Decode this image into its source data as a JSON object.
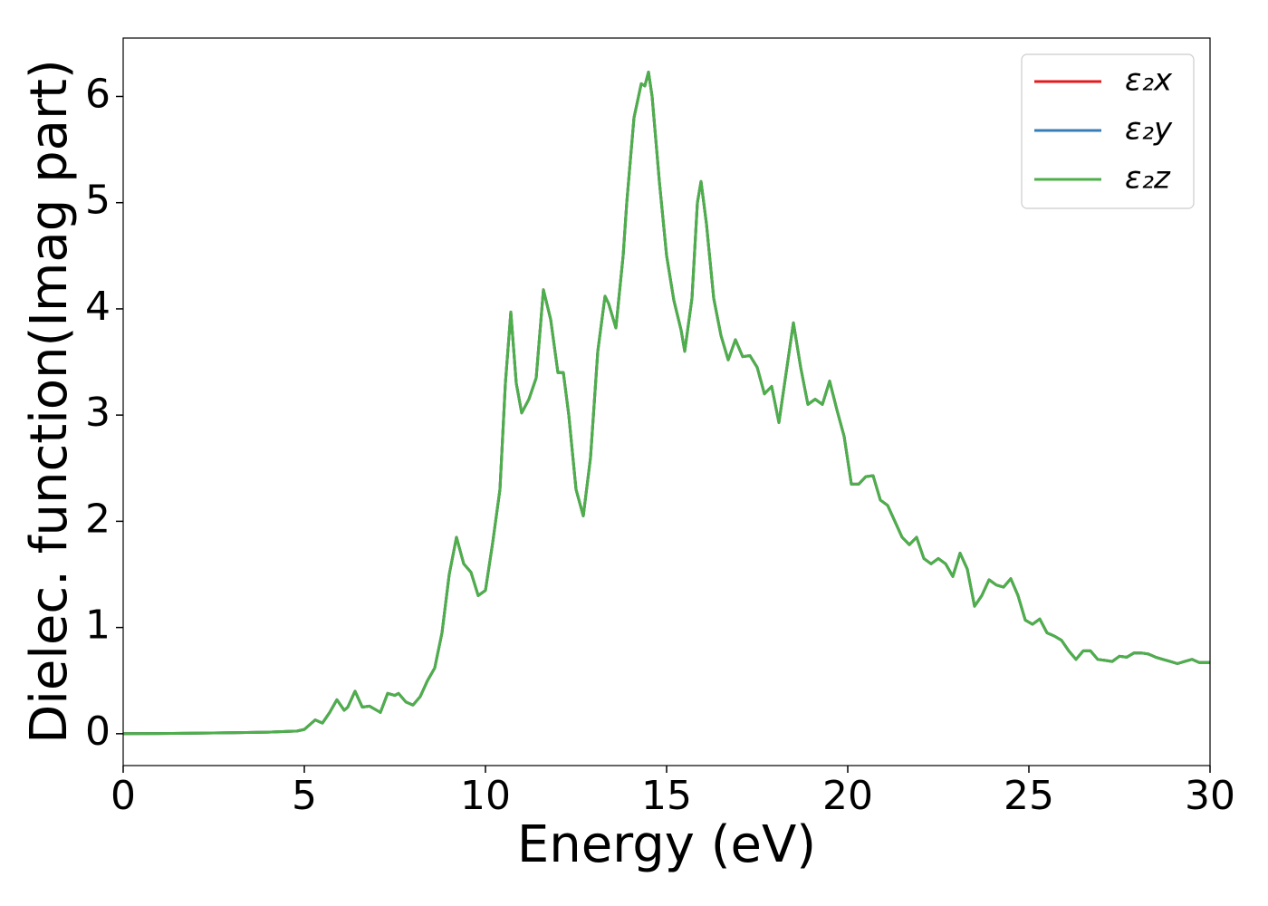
{
  "chart_data": {
    "type": "line",
    "x_label": "Energy (eV)",
    "y_label": "Dielec. function(Imag part)",
    "x": [
      0,
      1,
      2,
      3,
      4,
      4.8,
      5.0,
      5.2,
      5.3,
      5.5,
      5.7,
      5.9,
      6.1,
      6.2,
      6.4,
      6.6,
      6.8,
      7.0,
      7.1,
      7.3,
      7.5,
      7.6,
      7.8,
      8.0,
      8.2,
      8.4,
      8.6,
      8.8,
      9.0,
      9.2,
      9.4,
      9.6,
      9.8,
      10.0,
      10.2,
      10.4,
      10.55,
      10.7,
      10.85,
      11.0,
      11.2,
      11.4,
      11.6,
      11.8,
      12.0,
      12.15,
      12.3,
      12.5,
      12.7,
      12.9,
      13.1,
      13.3,
      13.4,
      13.6,
      13.8,
      13.9,
      14.1,
      14.3,
      14.4,
      14.5,
      14.6,
      14.8,
      15.0,
      15.2,
      15.4,
      15.5,
      15.7,
      15.85,
      15.95,
      16.1,
      16.3,
      16.5,
      16.7,
      16.9,
      17.1,
      17.3,
      17.5,
      17.7,
      17.9,
      18.1,
      18.3,
      18.5,
      18.7,
      18.9,
      19.1,
      19.3,
      19.5,
      19.7,
      19.9,
      20.1,
      20.3,
      20.5,
      20.7,
      20.9,
      21.1,
      21.3,
      21.5,
      21.7,
      21.9,
      22.1,
      22.3,
      22.5,
      22.7,
      22.9,
      23.1,
      23.3,
      23.5,
      23.7,
      23.9,
      24.1,
      24.3,
      24.5,
      24.7,
      24.9,
      25.1,
      25.3,
      25.5,
      25.7,
      25.9,
      26.1,
      26.3,
      26.5,
      26.7,
      26.9,
      27.1,
      27.3,
      27.5,
      27.7,
      27.9,
      28.1,
      28.3,
      28.5,
      28.7,
      28.9,
      29.1,
      29.3,
      29.5,
      29.7,
      30.0
    ],
    "series": [
      {
        "name": "ε₂x",
        "color": "#e41a1c",
        "values": [
          0,
          0.002,
          0.005,
          0.01,
          0.015,
          0.025,
          0.04,
          0.1,
          0.13,
          0.1,
          0.2,
          0.32,
          0.22,
          0.25,
          0.4,
          0.25,
          0.26,
          0.22,
          0.2,
          0.38,
          0.36,
          0.38,
          0.3,
          0.27,
          0.35,
          0.5,
          0.62,
          0.95,
          1.5,
          1.85,
          1.6,
          1.52,
          1.3,
          1.35,
          1.8,
          2.3,
          3.3,
          3.97,
          3.3,
          3.02,
          3.15,
          3.35,
          4.18,
          3.9,
          3.4,
          3.4,
          3.0,
          2.3,
          2.05,
          2.6,
          3.6,
          4.12,
          4.05,
          3.82,
          4.5,
          5.0,
          5.8,
          6.12,
          6.1,
          6.23,
          6.0,
          5.2,
          4.5,
          4.08,
          3.8,
          3.6,
          4.1,
          5.0,
          5.2,
          4.8,
          4.1,
          3.75,
          3.52,
          3.71,
          3.55,
          3.56,
          3.45,
          3.2,
          3.27,
          2.93,
          3.4,
          3.87,
          3.45,
          3.1,
          3.15,
          3.1,
          3.32,
          3.05,
          2.8,
          2.35,
          2.35,
          2.42,
          2.43,
          2.2,
          2.15,
          2.0,
          1.85,
          1.78,
          1.85,
          1.65,
          1.6,
          1.65,
          1.6,
          1.48,
          1.7,
          1.55,
          1.2,
          1.3,
          1.45,
          1.4,
          1.38,
          1.46,
          1.3,
          1.07,
          1.03,
          1.08,
          0.95,
          0.92,
          0.88,
          0.78,
          0.7,
          0.78,
          0.78,
          0.7,
          0.69,
          0.68,
          0.73,
          0.72,
          0.76,
          0.76,
          0.75,
          0.72,
          0.7,
          0.68,
          0.66,
          0.68,
          0.7,
          0.67,
          0.67
        ]
      },
      {
        "name": "ε₂y",
        "color": "#377eb8",
        "values": [
          0,
          0.002,
          0.005,
          0.01,
          0.015,
          0.025,
          0.04,
          0.1,
          0.13,
          0.1,
          0.2,
          0.32,
          0.22,
          0.25,
          0.4,
          0.25,
          0.26,
          0.22,
          0.2,
          0.38,
          0.36,
          0.38,
          0.3,
          0.27,
          0.35,
          0.5,
          0.62,
          0.95,
          1.5,
          1.85,
          1.6,
          1.52,
          1.3,
          1.35,
          1.8,
          2.3,
          3.3,
          3.97,
          3.3,
          3.02,
          3.15,
          3.35,
          4.18,
          3.9,
          3.4,
          3.4,
          3.0,
          2.3,
          2.05,
          2.6,
          3.6,
          4.12,
          4.05,
          3.82,
          4.5,
          5.0,
          5.8,
          6.12,
          6.1,
          6.23,
          6.0,
          5.2,
          4.5,
          4.08,
          3.8,
          3.6,
          4.1,
          5.0,
          5.2,
          4.8,
          4.1,
          3.75,
          3.52,
          3.71,
          3.55,
          3.56,
          3.45,
          3.2,
          3.27,
          2.93,
          3.4,
          3.87,
          3.45,
          3.1,
          3.15,
          3.1,
          3.32,
          3.05,
          2.8,
          2.35,
          2.35,
          2.42,
          2.43,
          2.2,
          2.15,
          2.0,
          1.85,
          1.78,
          1.85,
          1.65,
          1.6,
          1.65,
          1.6,
          1.48,
          1.7,
          1.55,
          1.2,
          1.3,
          1.45,
          1.4,
          1.38,
          1.46,
          1.3,
          1.07,
          1.03,
          1.08,
          0.95,
          0.92,
          0.88,
          0.78,
          0.7,
          0.78,
          0.78,
          0.7,
          0.69,
          0.68,
          0.73,
          0.72,
          0.76,
          0.76,
          0.75,
          0.72,
          0.7,
          0.68,
          0.66,
          0.68,
          0.7,
          0.67,
          0.67
        ]
      },
      {
        "name": "ε₂z",
        "color": "#4daf4a",
        "values": [
          0,
          0.002,
          0.005,
          0.01,
          0.015,
          0.025,
          0.04,
          0.1,
          0.13,
          0.1,
          0.2,
          0.32,
          0.22,
          0.25,
          0.4,
          0.25,
          0.26,
          0.22,
          0.2,
          0.38,
          0.36,
          0.38,
          0.3,
          0.27,
          0.35,
          0.5,
          0.62,
          0.95,
          1.5,
          1.85,
          1.6,
          1.52,
          1.3,
          1.35,
          1.8,
          2.3,
          3.3,
          3.97,
          3.3,
          3.02,
          3.15,
          3.35,
          4.18,
          3.9,
          3.4,
          3.4,
          3.0,
          2.3,
          2.05,
          2.6,
          3.6,
          4.12,
          4.05,
          3.82,
          4.5,
          5.0,
          5.8,
          6.12,
          6.1,
          6.23,
          6.0,
          5.2,
          4.5,
          4.08,
          3.8,
          3.6,
          4.1,
          5.0,
          5.2,
          4.8,
          4.1,
          3.75,
          3.52,
          3.71,
          3.55,
          3.56,
          3.45,
          3.2,
          3.27,
          2.93,
          3.4,
          3.87,
          3.45,
          3.1,
          3.15,
          3.1,
          3.32,
          3.05,
          2.8,
          2.35,
          2.35,
          2.42,
          2.43,
          2.2,
          2.15,
          2.0,
          1.85,
          1.78,
          1.85,
          1.65,
          1.6,
          1.65,
          1.6,
          1.48,
          1.7,
          1.55,
          1.2,
          1.3,
          1.45,
          1.4,
          1.38,
          1.46,
          1.3,
          1.07,
          1.03,
          1.08,
          0.95,
          0.92,
          0.88,
          0.78,
          0.7,
          0.78,
          0.78,
          0.7,
          0.69,
          0.68,
          0.73,
          0.72,
          0.76,
          0.76,
          0.75,
          0.72,
          0.7,
          0.68,
          0.66,
          0.68,
          0.7,
          0.67,
          0.67
        ]
      }
    ],
    "xlim": [
      0,
      30
    ],
    "xticks": [
      0,
      5,
      10,
      15,
      20,
      25,
      30
    ],
    "ylim": [
      -0.3,
      6.55
    ],
    "yticks": [
      0,
      1,
      2,
      3,
      4,
      5,
      6
    ],
    "grid": false,
    "legend": "upper right"
  }
}
